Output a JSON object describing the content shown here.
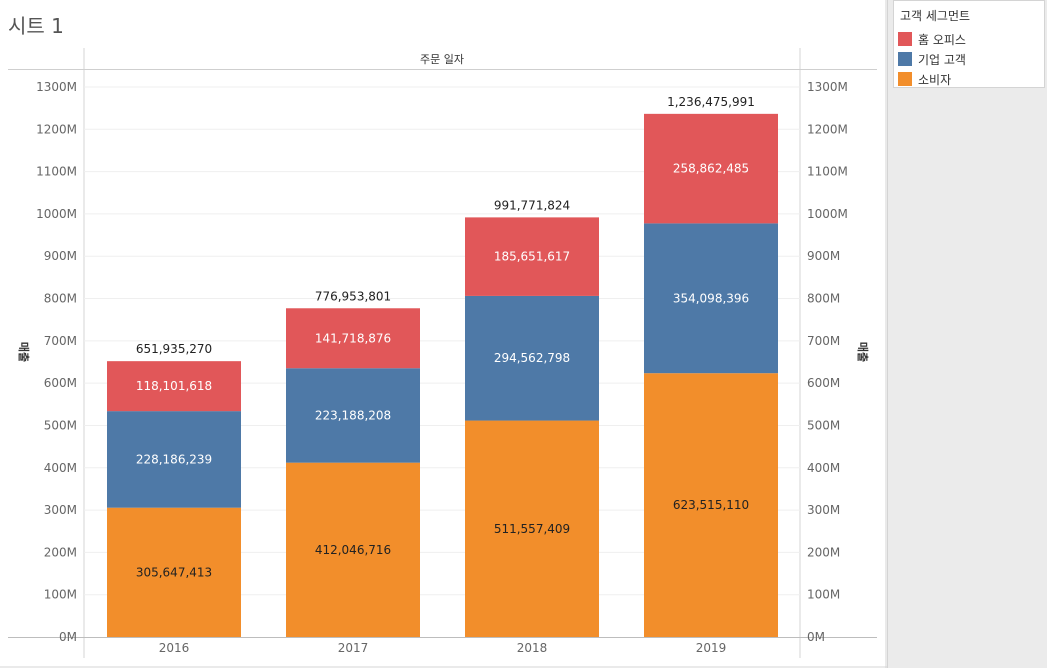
{
  "sheet": {
    "title": "시트 1"
  },
  "legend": {
    "title": "고객 세그먼트",
    "items": [
      {
        "label": "홈 오피스",
        "color": "#e15759"
      },
      {
        "label": "기업 고객",
        "color": "#4e79a7"
      },
      {
        "label": "소비자",
        "color": "#f28e2b"
      }
    ]
  },
  "chart_data": {
    "type": "bar",
    "stacked": true,
    "column_header": "주문 일자",
    "ylabel": "매출",
    "ylim": [
      0,
      1300000000
    ],
    "y_ticks": [
      "0M",
      "100M",
      "200M",
      "300M",
      "400M",
      "500M",
      "600M",
      "700M",
      "800M",
      "900M",
      "1000M",
      "1100M",
      "1200M",
      "1300M"
    ],
    "grid": true,
    "legend_position": "top-right",
    "categories": [
      "2016",
      "2017",
      "2018",
      "2019"
    ],
    "series": [
      {
        "name": "소비자",
        "color": "#f28e2b",
        "label_color": "#222222",
        "values": [
          305647413,
          412046716,
          511557409,
          623515110
        ],
        "labels": [
          "305,647,413",
          "412,046,716",
          "511,557,409",
          "623,515,110"
        ]
      },
      {
        "name": "기업 고객",
        "color": "#4e79a7",
        "label_color": "#ffffff",
        "values": [
          228186239,
          223188208,
          294562798,
          354098396
        ],
        "labels": [
          "228,186,239",
          "223,188,208",
          "294,562,798",
          "354,098,396"
        ]
      },
      {
        "name": "홈 오피스",
        "color": "#e15759",
        "label_color": "#ffffff",
        "values": [
          118101618,
          141718876,
          185651617,
          258862485
        ],
        "labels": [
          "118,101,618",
          "141,718,876",
          "185,651,617",
          "258,862,485"
        ]
      }
    ],
    "totals": [
      "651,935,270",
      "776,953,801",
      "991,771,824",
      "1,236,475,991"
    ]
  }
}
